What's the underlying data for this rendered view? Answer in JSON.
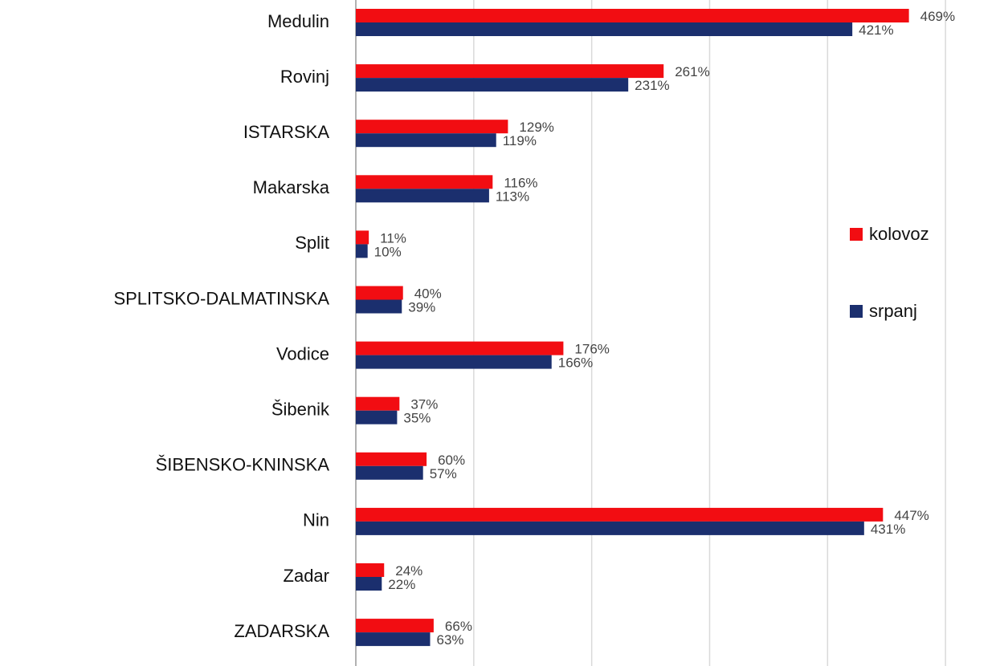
{
  "chart_data": {
    "type": "bar",
    "orientation": "horizontal",
    "categories": [
      "Medulin",
      "Rovinj",
      "ISTARSKA",
      "Makarska",
      "Split",
      "SPLITSKO-DALMATINSKA",
      "Vodice",
      "Šibenik",
      "ŠIBENSKO-KNINSKA",
      "Nin",
      "Zadar",
      "ZADARSKA"
    ],
    "series": [
      {
        "name": "kolovoz",
        "color": "#f20d12",
        "values": [
          469,
          261,
          129,
          116,
          11,
          40,
          176,
          37,
          60,
          447,
          24,
          66
        ],
        "value_labels": [
          "469%",
          "261%",
          "129%",
          "116%",
          "11%",
          "40%",
          "176%",
          "37%",
          "60%",
          "447%",
          "24%",
          "66%"
        ]
      },
      {
        "name": "srpanj",
        "color": "#1b2f6e",
        "values": [
          421,
          231,
          119,
          113,
          10,
          39,
          166,
          35,
          57,
          431,
          22,
          63
        ],
        "value_labels": [
          "421%",
          "231%",
          "119%",
          "113%",
          "10%",
          "39%",
          "166%",
          "35%",
          "57%",
          "431%",
          "22%",
          "63%"
        ]
      }
    ],
    "xlim": [
      0,
      536
    ],
    "xticks": [
      0,
      100,
      200,
      300,
      400,
      500
    ],
    "grid": true,
    "legend": "right"
  }
}
